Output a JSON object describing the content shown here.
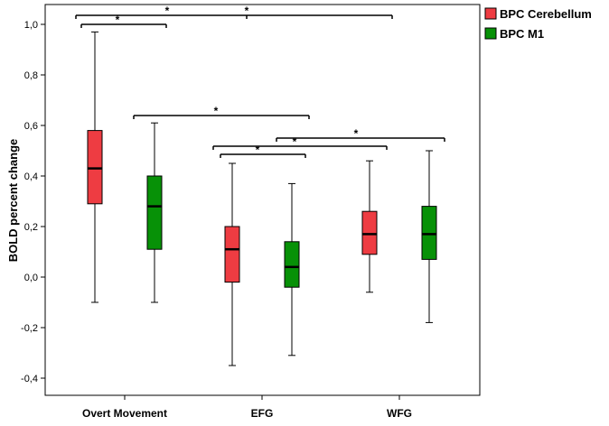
{
  "chart_data": {
    "type": "boxplot",
    "ylabel": "BOLD percent change",
    "xlabel": "",
    "ylim": [
      -0.45,
      1.05
    ],
    "yticks": [
      -0.4,
      -0.2,
      0.0,
      0.2,
      0.4,
      0.6,
      0.8,
      1.0
    ],
    "ytick_labels": [
      "-0,4",
      "-0,2",
      "0,0",
      "0,2",
      "0,4",
      "0,6",
      "0,8",
      "1,0"
    ],
    "categories": [
      "Overt Movement",
      "EFG",
      "WFG"
    ],
    "grid": false,
    "legend_position": "top-right outside",
    "series": [
      {
        "name": "BPC Cerebellum",
        "color": "#ee3c42",
        "boxes": [
          {
            "min": -0.1,
            "q1": 0.29,
            "median": 0.43,
            "q3": 0.58,
            "max": 0.97
          },
          {
            "min": -0.35,
            "q1": -0.02,
            "median": 0.11,
            "q3": 0.2,
            "max": 0.45
          },
          {
            "min": -0.06,
            "q1": 0.09,
            "median": 0.17,
            "q3": 0.26,
            "max": 0.46
          }
        ]
      },
      {
        "name": "BPC M1",
        "color": "#079107",
        "boxes": [
          {
            "min": -0.1,
            "q1": 0.11,
            "median": 0.28,
            "q3": 0.4,
            "max": 0.61
          },
          {
            "min": -0.31,
            "q1": -0.04,
            "median": 0.04,
            "q3": 0.14,
            "max": 0.37
          },
          {
            "min": -0.18,
            "q1": 0.07,
            "median": 0.17,
            "q3": 0.28,
            "max": 0.5
          }
        ]
      }
    ],
    "significance": [
      {
        "from": {
          "category": 0,
          "series": 0
        },
        "to": {
          "category": 0,
          "series": 1
        },
        "y": 1.0,
        "label": "*"
      },
      {
        "from": {
          "category": 0,
          "series": 0
        },
        "to": {
          "category": 2,
          "series": 0
        },
        "y": 1.04,
        "label": "*"
      },
      {
        "from": {
          "category": 0,
          "series": 0
        },
        "to": {
          "category": 2,
          "series": 0
        },
        "y": 1.04,
        "label": "*"
      },
      {
        "from": {
          "category": 0,
          "series": 1
        },
        "to": {
          "category": 1,
          "series": 1
        },
        "y": 0.64,
        "label": "*"
      },
      {
        "from": {
          "category": 1,
          "series": 0
        },
        "to": {
          "category": 2,
          "series": 0
        },
        "y": 0.52,
        "label": "*"
      },
      {
        "from": {
          "category": 1,
          "series": 1
        },
        "to": {
          "category": 2,
          "series": 1
        },
        "y": 0.55,
        "label": "*"
      },
      {
        "from": {
          "category": 1,
          "series": 0
        },
        "to": {
          "category": 1,
          "series": 1
        },
        "y": 0.48,
        "label": "*"
      }
    ]
  }
}
